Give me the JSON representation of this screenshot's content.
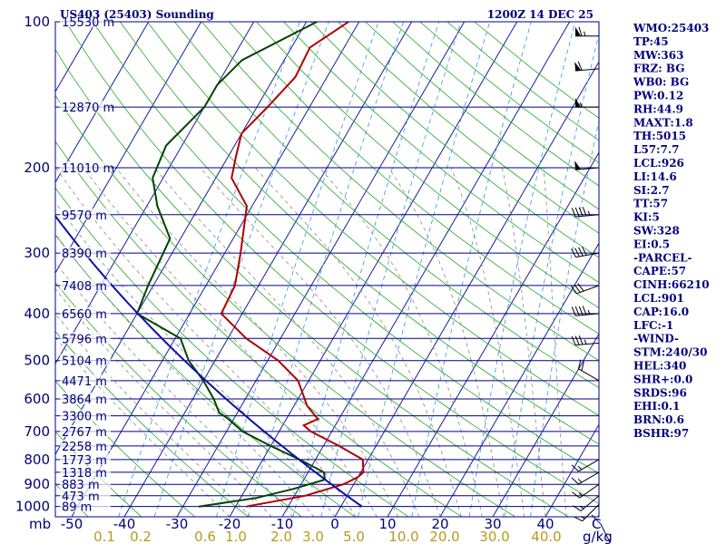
{
  "header": {
    "station": "US403 (25403) Sounding",
    "time": "1200Z 14 DEC 25"
  },
  "axes": {
    "pressure_unit": "mb",
    "mixing_unit": "g/kg",
    "temp_unit": "C"
  },
  "chart_data": {
    "type": "line",
    "title": "US403 (25403) Sounding",
    "chart_kind": "skew-t log-p",
    "ylim": [
      1000,
      100
    ],
    "yscale": "log",
    "pressure_ticks": [
      100,
      200,
      300,
      400,
      500,
      600,
      700,
      800,
      900,
      1000
    ],
    "temp_ticks": [
      -50,
      -40,
      -30,
      -20,
      -10,
      0,
      10,
      20,
      30,
      40
    ],
    "mixing_ratio_ticks": [
      "0.1",
      "0.2",
      "0.6",
      "1.0",
      "2.0",
      "3.0",
      "5.0",
      "10.0",
      "20.0",
      "30.0",
      "40.0"
    ],
    "height_labels": [
      {
        "p": 100,
        "label": "15530 m"
      },
      {
        "p": 150,
        "label": "12870 m"
      },
      {
        "p": 200,
        "label": "11010 m"
      },
      {
        "p": 250,
        "label": "9570 m"
      },
      {
        "p": 300,
        "label": "8390 m"
      },
      {
        "p": 350,
        "label": "7408 m"
      },
      {
        "p": 400,
        "label": "6560 m"
      },
      {
        "p": 450,
        "label": "5796 m"
      },
      {
        "p": 500,
        "label": "5104 m"
      },
      {
        "p": 550,
        "label": "4471 m"
      },
      {
        "p": 600,
        "label": "3864 m"
      },
      {
        "p": 650,
        "label": "3300 m"
      },
      {
        "p": 700,
        "label": "2767 m"
      },
      {
        "p": 750,
        "label": "2258 m"
      },
      {
        "p": 800,
        "label": "1773 m"
      },
      {
        "p": 850,
        "label": "1318 m"
      },
      {
        "p": 900,
        "label": "883 m"
      },
      {
        "p": 950,
        "label": "473 m"
      },
      {
        "p": 1000,
        "label": "89 m"
      }
    ],
    "series": [
      {
        "role": "temperature",
        "color": "#b00000",
        "points": [
          [
            100,
            -52
          ],
          [
            113,
            -56.5
          ],
          [
            130,
            -56
          ],
          [
            150,
            -58
          ],
          [
            170,
            -60
          ],
          [
            190,
            -58.5
          ],
          [
            210,
            -57
          ],
          [
            240,
            -51
          ],
          [
            300,
            -47
          ],
          [
            350,
            -44.5
          ],
          [
            400,
            -44
          ],
          [
            450,
            -36.5
          ],
          [
            500,
            -28
          ],
          [
            550,
            -22
          ],
          [
            580,
            -20
          ],
          [
            620,
            -17.5
          ],
          [
            660,
            -14
          ],
          [
            680,
            -16
          ],
          [
            700,
            -14
          ],
          [
            750,
            -7
          ],
          [
            800,
            -1
          ],
          [
            850,
            0.5
          ],
          [
            870,
            0
          ],
          [
            900,
            -2
          ],
          [
            950,
            -8
          ],
          [
            1000,
            -18
          ]
        ]
      },
      {
        "role": "dewpoint",
        "color": "#004400",
        "points": [
          [
            100,
            -58
          ],
          [
            120,
            -68
          ],
          [
            135,
            -70
          ],
          [
            150,
            -70
          ],
          [
            180,
            -73
          ],
          [
            210,
            -72
          ],
          [
            240,
            -68
          ],
          [
            280,
            -62
          ],
          [
            350,
            -61
          ],
          [
            400,
            -60
          ],
          [
            450,
            -49
          ],
          [
            500,
            -45
          ],
          [
            550,
            -40
          ],
          [
            600,
            -36
          ],
          [
            640,
            -33.5
          ],
          [
            660,
            -31
          ],
          [
            700,
            -27
          ],
          [
            750,
            -20
          ],
          [
            800,
            -13
          ],
          [
            850,
            -7
          ],
          [
            880,
            -6
          ],
          [
            920,
            -11
          ],
          [
            960,
            -17
          ],
          [
            1000,
            -27
          ]
        ]
      }
    ],
    "wind_barbs": [
      {
        "p": 107,
        "dir": 270,
        "spd": 65
      },
      {
        "p": 125,
        "dir": 265,
        "spd": 60
      },
      {
        "p": 150,
        "dir": 270,
        "spd": 55
      },
      {
        "p": 200,
        "dir": 265,
        "spd": 50
      },
      {
        "p": 250,
        "dir": 265,
        "spd": 45
      },
      {
        "p": 300,
        "dir": 260,
        "spd": 40
      },
      {
        "p": 350,
        "dir": 250,
        "spd": 30
      },
      {
        "p": 400,
        "dir": 265,
        "spd": 45
      },
      {
        "p": 460,
        "dir": 265,
        "spd": 35
      },
      {
        "p": 550,
        "dir": 300,
        "spd": 20
      },
      {
        "p": 800,
        "dir": 240,
        "spd": 15
      },
      {
        "p": 850,
        "dir": 240,
        "spd": 15
      },
      {
        "p": 900,
        "dir": 235,
        "spd": 15
      },
      {
        "p": 950,
        "dir": 230,
        "spd": 15
      },
      {
        "p": 990,
        "dir": 225,
        "spd": 15
      }
    ]
  },
  "indices": [
    "WMO:25403",
    "TP:45",
    "MW:363",
    "FRZ: BG",
    "WB0: BG",
    "PW:0.12",
    "RH:44.9",
    "MAXT:1.8",
    "TH:5015",
    "L57:7.7",
    "LCL:926",
    "LI:14.6",
    "SI:2.7",
    "TT:57",
    "KI:5",
    "SW:328",
    "EI:0.5",
    "-PARCEL-",
    "CAPE:57",
    "CINH:66210",
    "LCL:901",
    "CAP:16.0",
    "LFC:-1",
    "-WIND-",
    "STM:240/30",
    "HEL:340",
    "SHR+:0.0",
    "SRDS:96",
    "EHI:0.1",
    "BRN:0.6",
    "BSHR:97"
  ]
}
